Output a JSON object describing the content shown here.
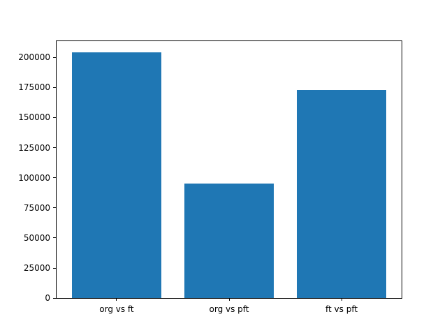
{
  "figure": {
    "background": "#ffffff"
  },
  "chart_data": {
    "type": "bar",
    "categories": [
      "org vs ft",
      "org vs pft",
      "ft vs pft"
    ],
    "values": [
      204000,
      95000,
      172600
    ],
    "yticks": [
      0,
      25000,
      50000,
      75000,
      100000,
      125000,
      150000,
      175000,
      200000
    ],
    "ylim": [
      0,
      214200
    ],
    "xlim": [
      -0.54,
      2.54
    ],
    "bar_width": 0.8,
    "title": "",
    "xlabel": "",
    "ylabel": "",
    "grid": false,
    "legend": null,
    "bar_color": "#1f77b4",
    "axis_color": "#000000",
    "text_color": "#000000"
  }
}
